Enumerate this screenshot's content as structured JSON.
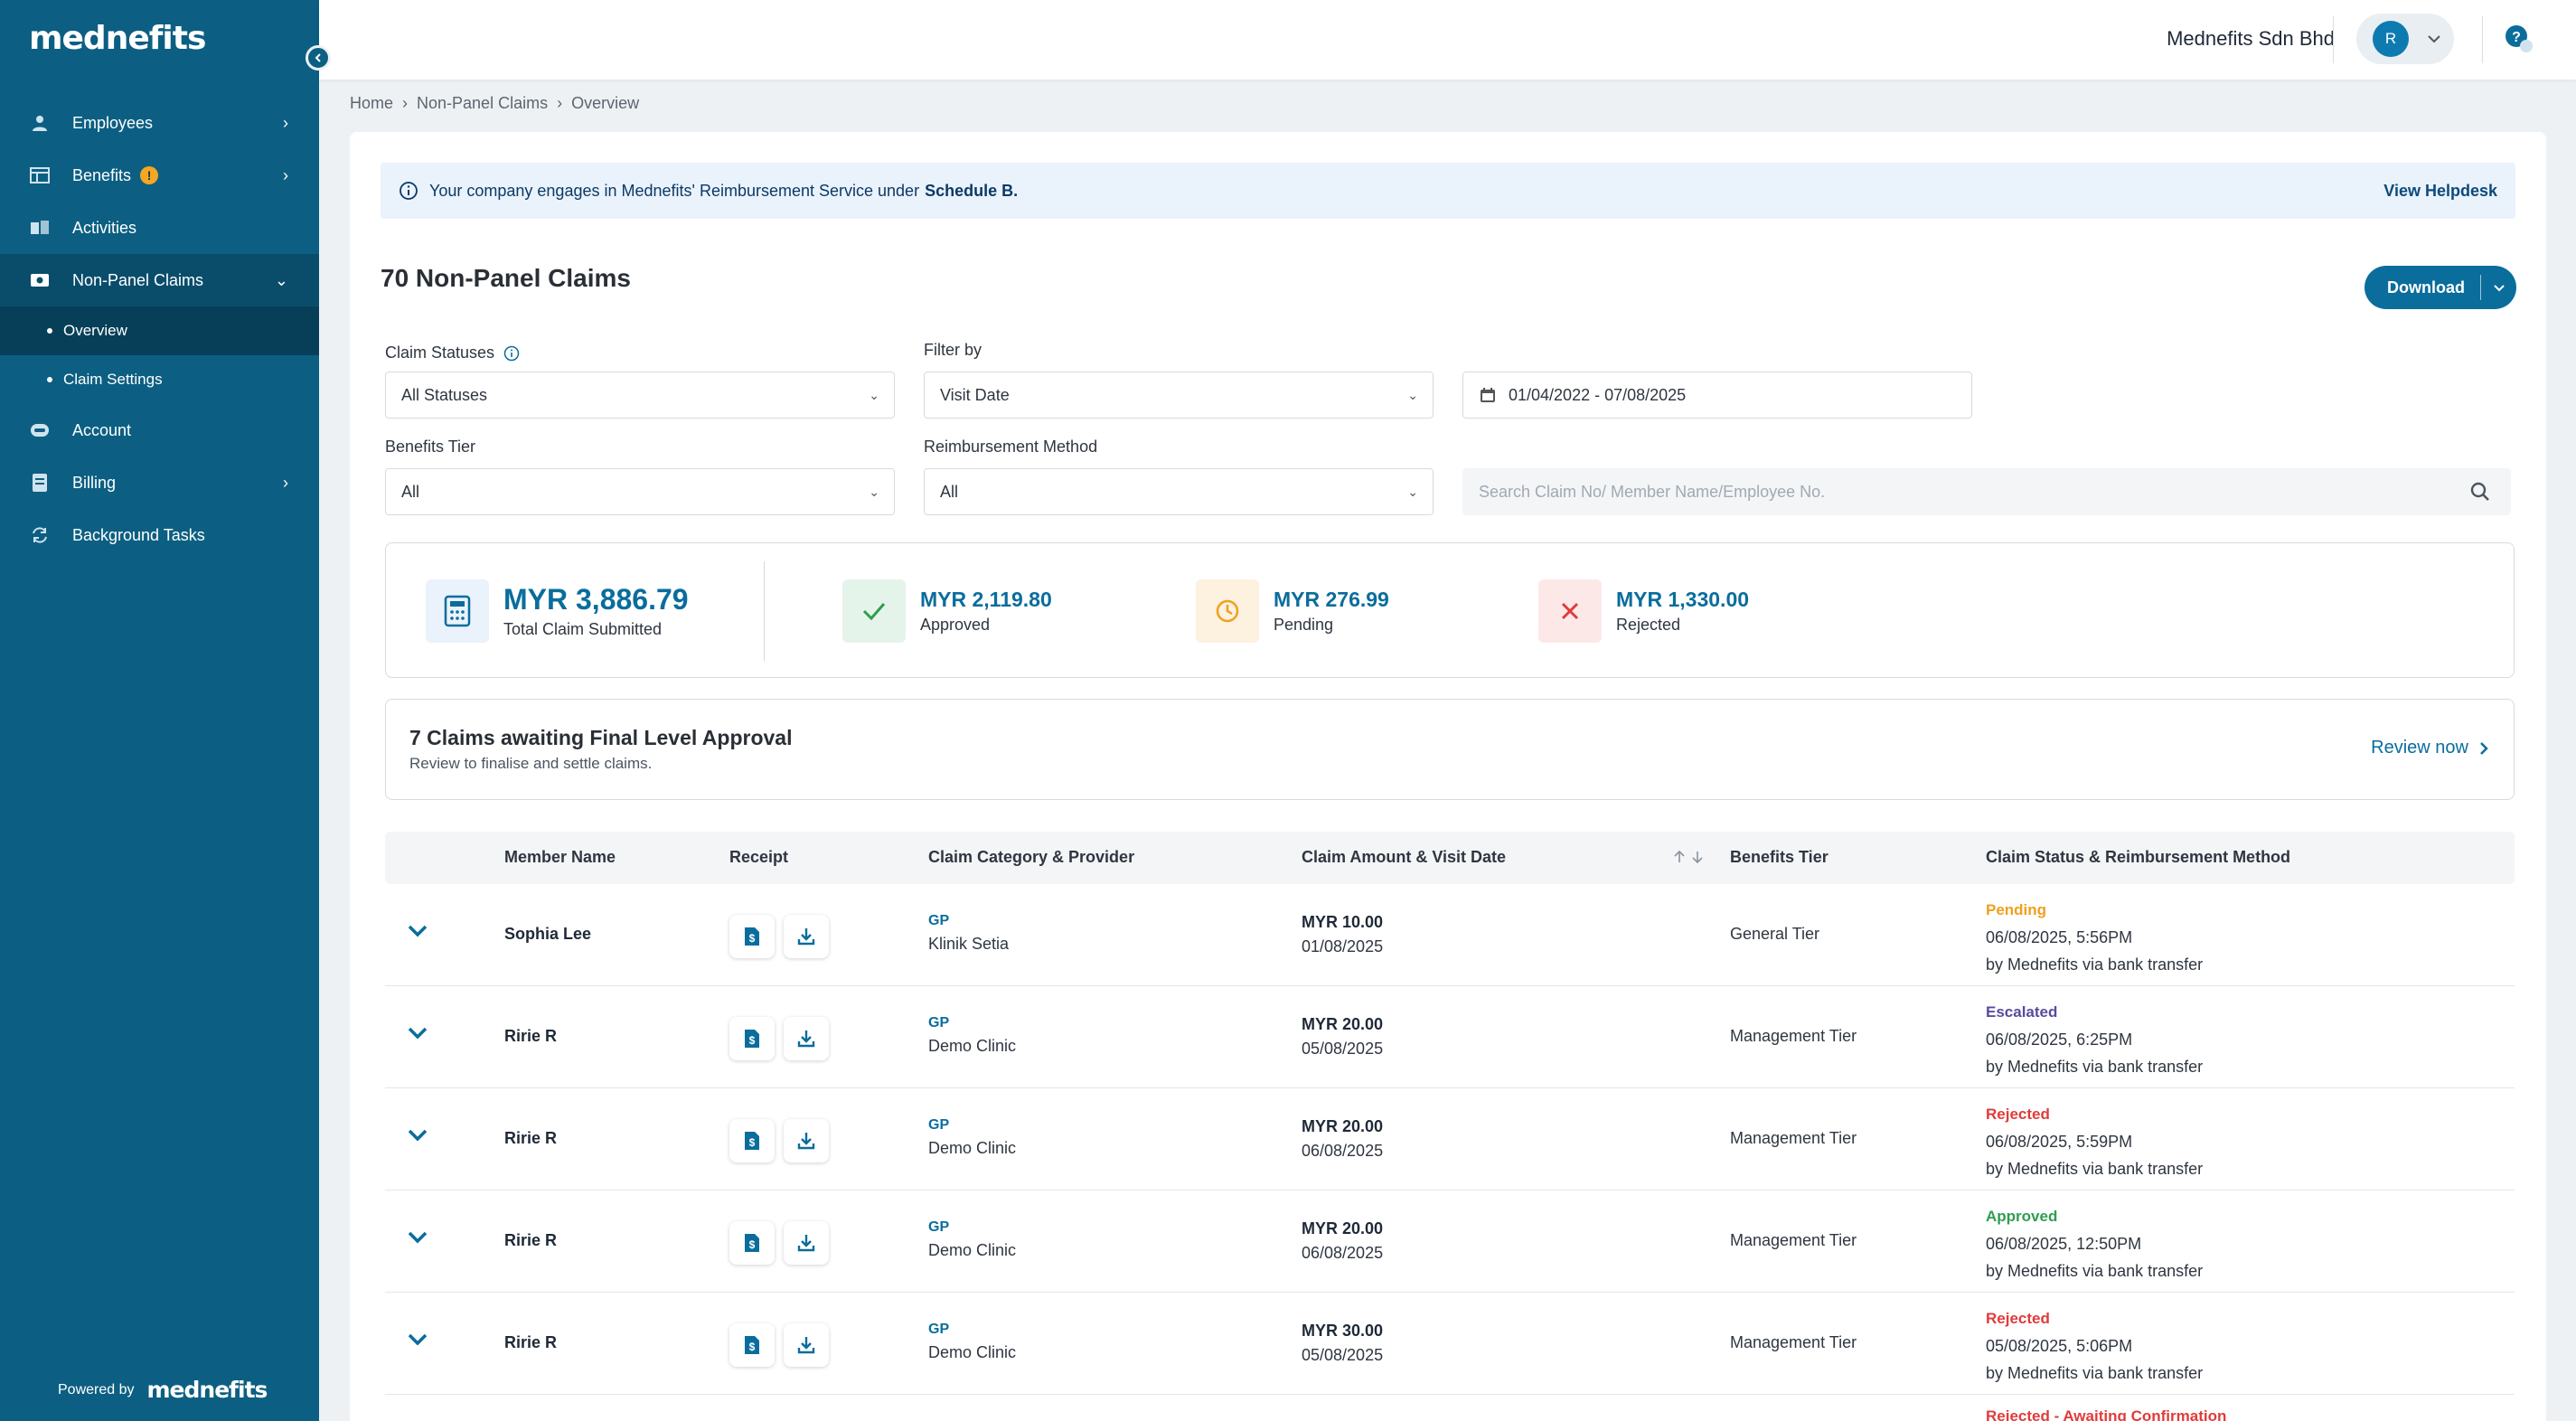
{
  "brand": {
    "logo_text": "mednefits",
    "powered_by": "Powered by"
  },
  "sidebar": {
    "items": [
      {
        "label": "Employees",
        "icon": "person-icon",
        "has_chevron": true
      },
      {
        "label": "Benefits",
        "icon": "table-icon",
        "has_chevron": true,
        "badge": "!"
      },
      {
        "label": "Activities",
        "icon": "activity-icon",
        "has_chevron": false
      },
      {
        "label": "Non-Panel Claims",
        "icon": "money-icon",
        "has_chevron": true,
        "expanded": true
      },
      {
        "label": "Overview",
        "sub": true,
        "active": true
      },
      {
        "label": "Claim Settings",
        "sub": true
      },
      {
        "label": "Account",
        "icon": "account-icon",
        "has_chevron": false
      },
      {
        "label": "Billing",
        "icon": "billing-icon",
        "has_chevron": true
      },
      {
        "label": "Background Tasks",
        "icon": "sync-icon",
        "has_chevron": false
      }
    ]
  },
  "topbar": {
    "company": "Mednefits Sdn Bhd",
    "avatar_initial": "R"
  },
  "breadcrumb": [
    "Home",
    "Non-Panel Claims",
    "Overview"
  ],
  "banner": {
    "text": "Your company engages in Mednefits' Reimbursement Service under",
    "bold": "Schedule B.",
    "link": "View Helpdesk"
  },
  "page": {
    "title": "70 Non-Panel Claims",
    "download_label": "Download"
  },
  "filters": {
    "claim_statuses_label": "Claim Statuses",
    "claim_statuses_value": "All Statuses",
    "filter_by_label": "Filter by",
    "filter_by_value": "Visit Date",
    "date_range": "01/04/2022 - 07/08/2025",
    "benefits_tier_label": "Benefits Tier",
    "benefits_tier_value": "All",
    "reimbursement_label": "Reimbursement Method",
    "reimbursement_value": "All",
    "search_placeholder": "Search Claim No/ Member Name/Employee No."
  },
  "summary": {
    "total": {
      "value": "MYR 3,886.79",
      "label": "Total Claim Submitted"
    },
    "approved": {
      "value": "MYR 2,119.80",
      "label": "Approved",
      "color": "#2e9e4f"
    },
    "pending": {
      "value": "MYR 276.99",
      "label": "Pending",
      "color": "#f0a01e"
    },
    "rejected": {
      "value": "MYR 1,330.00",
      "label": "Rejected",
      "color": "#e03b3b"
    }
  },
  "awaiting": {
    "title": "7 Claims awaiting Final Level Approval",
    "subtitle": "Review to finalise and settle claims.",
    "action": "Review now"
  },
  "table": {
    "headers": [
      "Member Name",
      "Receipt",
      "Claim Category & Provider",
      "Claim Amount & Visit Date",
      "Benefits Tier",
      "Claim Status & Reimbursement Method"
    ],
    "rows": [
      {
        "name": "Sophia Lee",
        "category": "GP",
        "provider": "Klinik Setia",
        "amount": "MYR 10.00",
        "date": "01/08/2025",
        "tier": "General Tier",
        "status": "Pending",
        "status_color": "#f0a01e",
        "status_time": "06/08/2025, 5:56PM",
        "method": "by Mednefits via bank transfer"
      },
      {
        "name": "Ririe R",
        "category": "GP",
        "provider": "Demo Clinic",
        "amount": "MYR 20.00",
        "date": "05/08/2025",
        "tier": "Management Tier",
        "status": "Escalated",
        "status_color": "#5b4a9e",
        "status_time": "06/08/2025, 6:25PM",
        "method": "by Mednefits via bank transfer"
      },
      {
        "name": "Ririe R",
        "category": "GP",
        "provider": "Demo Clinic",
        "amount": "MYR 20.00",
        "date": "06/08/2025",
        "tier": "Management Tier",
        "status": "Rejected",
        "status_color": "#e03b3b",
        "status_time": "06/08/2025, 5:59PM",
        "method": "by Mednefits via bank transfer"
      },
      {
        "name": "Ririe R",
        "category": "GP",
        "provider": "Demo Clinic",
        "amount": "MYR 20.00",
        "date": "06/08/2025",
        "tier": "Management Tier",
        "status": "Approved",
        "status_color": "#2e9e4f",
        "status_time": "06/08/2025, 12:50PM",
        "method": "by Mednefits via bank transfer"
      },
      {
        "name": "Ririe R",
        "category": "GP",
        "provider": "Demo Clinic",
        "amount": "MYR 30.00",
        "date": "05/08/2025",
        "tier": "Management Tier",
        "status": "Rejected",
        "status_color": "#e03b3b",
        "status_time": "05/08/2025, 5:06PM",
        "method": "by Mednefits via bank transfer"
      }
    ],
    "partial_status": "Rejected - Awaiting Confirmation"
  }
}
